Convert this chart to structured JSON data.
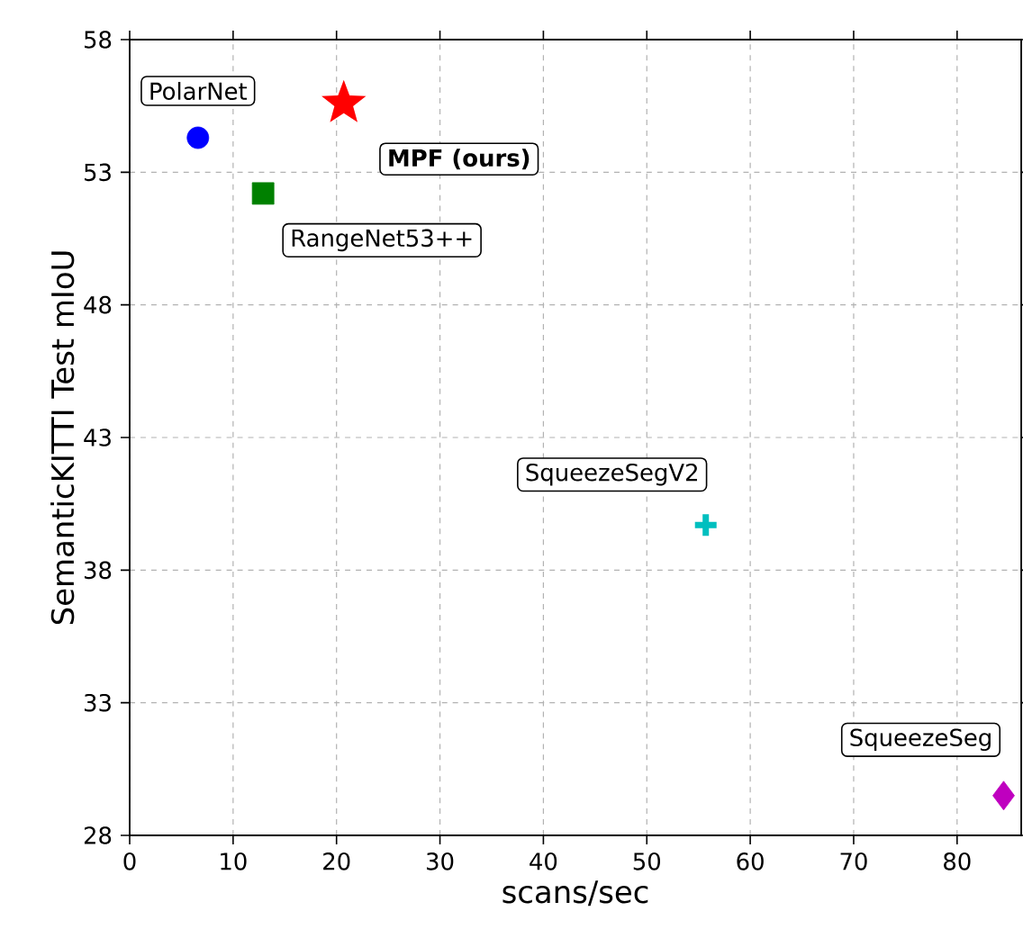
{
  "chart_data": {
    "type": "scatter",
    "xlabel": "scans/sec",
    "ylabel": "SemanticKITTI Test mIoU",
    "xlim": [
      0,
      86.2
    ],
    "ylim": [
      28,
      58
    ],
    "xticks": [
      0,
      10,
      20,
      30,
      40,
      50,
      60,
      70,
      80
    ],
    "yticks": [
      28,
      33,
      38,
      43,
      48,
      53,
      58
    ],
    "grid": true,
    "legend": false,
    "series": [
      {
        "name": "PolarNet",
        "color": "#0000ff",
        "marker": "circle",
        "x": [
          6.6
        ],
        "values": [
          54.3
        ]
      },
      {
        "name": "**MPF (ours)**",
        "color": "#ff0000",
        "marker": "star",
        "x": [
          20.7
        ],
        "values": [
          55.6
        ]
      },
      {
        "name": "RangeNet53++",
        "color": "#008000",
        "marker": "square",
        "x": [
          12.9
        ],
        "values": [
          52.2
        ]
      },
      {
        "name": "SqueezeSegV2",
        "color": "#00bfbf",
        "marker": "cross",
        "x": [
          55.7
        ],
        "values": [
          39.7
        ]
      },
      {
        "name": "SqueezeSeg",
        "color": "#bf00bf",
        "marker": "diamond",
        "x": [
          84.5
        ],
        "values": [
          29.5
        ]
      }
    ]
  }
}
